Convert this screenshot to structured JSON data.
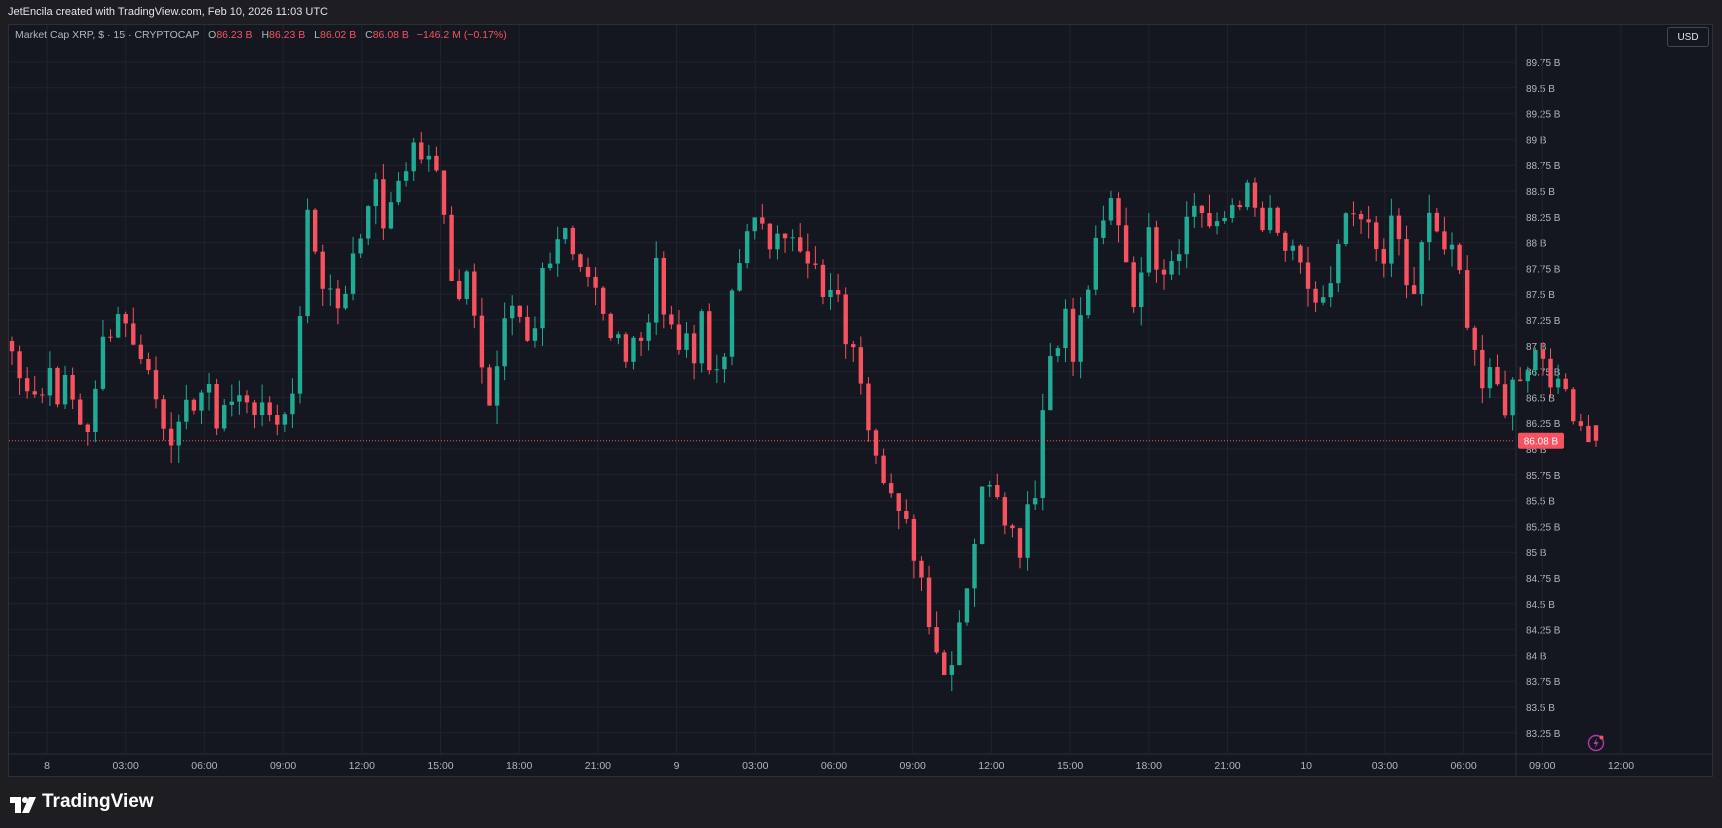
{
  "header": {
    "attribution": "JetEncila created with TradingView.com, Feb 10, 2026 11:03 UTC"
  },
  "legend": {
    "symbol": "Market Cap XRP, $ · 15 · CRYPTOCAP",
    "open_label": "O",
    "open": "86.23 B",
    "high_label": "H",
    "high": "86.23 B",
    "low_label": "L",
    "low": "86.02 B",
    "close_label": "C",
    "close": "86.08 B",
    "change": "−146.2 M (−0.17%)"
  },
  "currency_button": "USD",
  "footer": {
    "brand": "TradingView"
  },
  "colors": {
    "up": "#22ab94",
    "down": "#f7525f",
    "background": "#141720",
    "grid": "#1f232d",
    "text": "#b2b5be"
  },
  "icons": {
    "logo": "tradingview-logo-icon",
    "alert": "lightning-icon"
  },
  "chart_data": {
    "type": "candlestick",
    "interval": "15",
    "y_unit": "B USD",
    "ylim": [
      83.0,
      89.9
    ],
    "y_ticks": [
      "89.75 B",
      "89.5 B",
      "89.25 B",
      "89 B",
      "88.75 B",
      "88.5 B",
      "88.25 B",
      "88 B",
      "87.75 B",
      "87.5 B",
      "87.25 B",
      "87 B",
      "86.75 B",
      "86.5 B",
      "86.25 B",
      "86 B",
      "85.75 B",
      "85.5 B",
      "85.25 B",
      "85 B",
      "84.75 B",
      "84.5 B",
      "84.25 B",
      "84 B",
      "83.75 B",
      "83.5 B",
      "83.25 B"
    ],
    "x_ticks": [
      "8",
      "03:00",
      "06:00",
      "09:00",
      "12:00",
      "15:00",
      "18:00",
      "21:00",
      "9",
      "03:00",
      "06:00",
      "09:00",
      "12:00",
      "15:00",
      "18:00",
      "21:00",
      "10",
      "03:00",
      "06:00",
      "09:00",
      "12:00"
    ],
    "last_price_label": "86.08 B",
    "last_price": 86.08,
    "grid": true,
    "path_keypoints": [
      86.95,
      86.6,
      86.75,
      86.45,
      86.8,
      86.55,
      86.6,
      86.3,
      86.2,
      86.5,
      87.2,
      87.25,
      87.4,
      86.95,
      87.0,
      86.6,
      86.35,
      86.2,
      86.1,
      86.4,
      86.6,
      86.5,
      86.3,
      86.5,
      86.4,
      86.55,
      86.45,
      86.25,
      86.4,
      86.25,
      86.5,
      87.5,
      88.5,
      87.5,
      87.8,
      87.2,
      87.7,
      87.8,
      88.4,
      88.6,
      88.1,
      88.4,
      88.7,
      89.1,
      88.8,
      89.05,
      88.7,
      87.6,
      87.4,
      87.6,
      87.2,
      86.3,
      86.8,
      87.2,
      87.5,
      87.1,
      87.2,
      87.7,
      88.0,
      88.2,
      87.8,
      87.6,
      87.5,
      87.4,
      87.0,
      87.1,
      87.0,
      87.2,
      87.0,
      88.0,
      87.2,
      87.1,
      87.0,
      86.9,
      87.4,
      86.6,
      86.9,
      87.2,
      87.8,
      88.0,
      88.3,
      88.1,
      88.0,
      87.9,
      88.2,
      88.0,
      87.8,
      87.4,
      87.5,
      87.3,
      86.9,
      86.8,
      86.3,
      86.0,
      85.7,
      85.3,
      85.2,
      85.0,
      84.6,
      84.2,
      83.8,
      84.1,
      84.5,
      85.0,
      85.5,
      85.8,
      85.6,
      85.3,
      85.0,
      85.5,
      85.7,
      86.8,
      87.1,
      87.3,
      86.8,
      87.4,
      87.8,
      88.1,
      88.4,
      88.2,
      87.6,
      87.4,
      88.3,
      87.8,
      87.8,
      88.0,
      88.2,
      88.4,
      88.3,
      88.0,
      88.2,
      88.4,
      88.5,
      88.4,
      88.1,
      88.2,
      88.0,
      87.9,
      87.7,
      87.6,
      87.4,
      87.4,
      87.6,
      88.3,
      88.1,
      88.2,
      88.0,
      87.9,
      88.1,
      88.0,
      87.3,
      87.8,
      88.2,
      88.1,
      87.9,
      87.8,
      87.4,
      87.0,
      86.5,
      86.7,
      86.4,
      86.6,
      86.8,
      86.9,
      87.0,
      86.8,
      86.5,
      86.6,
      86.3,
      86.2,
      86.08
    ],
    "open": 86.23,
    "high": 86.23,
    "low": 86.02,
    "close": 86.08
  }
}
